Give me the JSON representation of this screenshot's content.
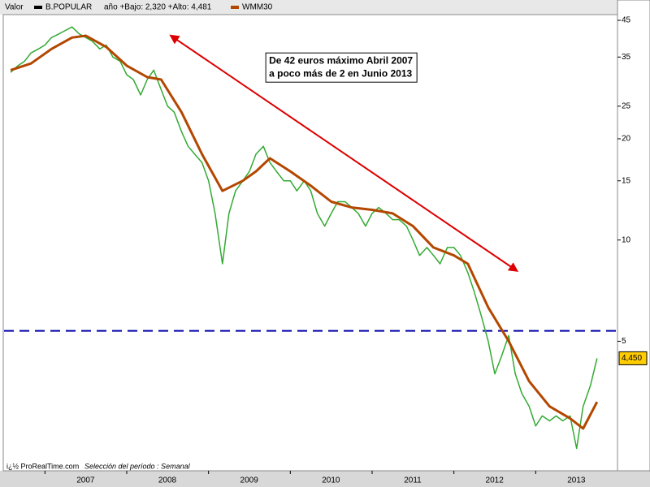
{
  "chart_data": {
    "type": "line",
    "legend_title": "Valor",
    "subtitle": "año +Bajo: 2,320 +Alto: 4,481",
    "footer": "i¿½ ProRealTime.com",
    "footer_note": "Selección del período : Semanal",
    "log_scale": true,
    "ylim": [
      2.06,
      46.8
    ],
    "yticks": [
      45,
      35,
      25,
      20,
      15,
      10,
      5
    ],
    "xlim": [
      2006.5,
      2014.0
    ],
    "xticks": [
      2007,
      2008,
      2009,
      2010,
      2011,
      2012,
      2013
    ],
    "last_label": {
      "value": 4.45,
      "label": "4,450",
      "color": "#ffcc00"
    },
    "hline": {
      "value": 5.37,
      "color": "#0000aa"
    },
    "annotation": {
      "lines": [
        "De 42 euros máximo Abril 2007",
        "a poco más de 2 en Junio 2013"
      ],
      "x": 2009.7,
      "y": 36
    },
    "arrow": {
      "from": [
        2008.54,
        40.5
      ],
      "to": [
        2012.77,
        8.1
      ],
      "color": "#dd0000"
    },
    "series": [
      {
        "name": "B.POPULAR",
        "color": "#33aa33",
        "legend_color": "#000000",
        "x": [
          2006.58,
          2006.67,
          2006.75,
          2006.83,
          2006.92,
          2007.0,
          2007.08,
          2007.17,
          2007.25,
          2007.33,
          2007.42,
          2007.5,
          2007.58,
          2007.67,
          2007.75,
          2007.83,
          2007.92,
          2008.0,
          2008.08,
          2008.17,
          2008.25,
          2008.33,
          2008.42,
          2008.5,
          2008.58,
          2008.67,
          2008.75,
          2008.83,
          2008.92,
          2009.0,
          2009.08,
          2009.17,
          2009.25,
          2009.33,
          2009.42,
          2009.5,
          2009.58,
          2009.67,
          2009.75,
          2009.83,
          2009.92,
          2010.0,
          2010.08,
          2010.17,
          2010.25,
          2010.33,
          2010.42,
          2010.5,
          2010.58,
          2010.67,
          2010.75,
          2010.83,
          2010.92,
          2011.0,
          2011.08,
          2011.17,
          2011.25,
          2011.33,
          2011.42,
          2011.5,
          2011.58,
          2011.67,
          2011.75,
          2011.83,
          2011.92,
          2012.0,
          2012.08,
          2012.17,
          2012.25,
          2012.33,
          2012.42,
          2012.5,
          2012.58,
          2012.67,
          2012.75,
          2012.83,
          2012.92,
          2013.0,
          2013.08,
          2013.17,
          2013.25,
          2013.33,
          2013.42,
          2013.5,
          2013.58,
          2013.67,
          2013.75
        ],
        "values": [
          31.5,
          33,
          34,
          36,
          37,
          38,
          40,
          41,
          42,
          43,
          41,
          40,
          39,
          37,
          38,
          35,
          34,
          31,
          30,
          27,
          30,
          32,
          28,
          25,
          24,
          21,
          19,
          18,
          17,
          15,
          12,
          8.5,
          12,
          14,
          15,
          16,
          18,
          19,
          17,
          16,
          15,
          15,
          14,
          15,
          14,
          12,
          11,
          12,
          13,
          13,
          12.5,
          12,
          11,
          12,
          12.5,
          12,
          11.5,
          11.5,
          11,
          10,
          9,
          9.5,
          9,
          8.5,
          9.5,
          9.5,
          9,
          8,
          7,
          6,
          5,
          4,
          4.5,
          5.2,
          4,
          3.5,
          3.2,
          2.8,
          3.0,
          2.9,
          3.0,
          2.9,
          3.0,
          2.4,
          3.2,
          3.7,
          4.45
        ]
      },
      {
        "name": "WMM30",
        "color": "#b34700",
        "legend_color": "#b34700",
        "x": [
          2006.58,
          2006.83,
          2007.08,
          2007.33,
          2007.5,
          2007.75,
          2008.0,
          2008.25,
          2008.42,
          2008.67,
          2008.92,
          2009.17,
          2009.42,
          2009.58,
          2009.75,
          2010.0,
          2010.25,
          2010.5,
          2010.75,
          2011.0,
          2011.25,
          2011.5,
          2011.75,
          2012.0,
          2012.17,
          2012.42,
          2012.67,
          2012.92,
          2013.17,
          2013.42,
          2013.58,
          2013.75
        ],
        "values": [
          32,
          33.5,
          37,
          40,
          40.5,
          37.5,
          33,
          30.5,
          30,
          24,
          18,
          14,
          15,
          16,
          17.5,
          16,
          14.5,
          13,
          12.5,
          12.3,
          12,
          11,
          9.5,
          9,
          8.5,
          6.3,
          5,
          3.8,
          3.2,
          2.95,
          2.75,
          3.3
        ]
      }
    ]
  }
}
